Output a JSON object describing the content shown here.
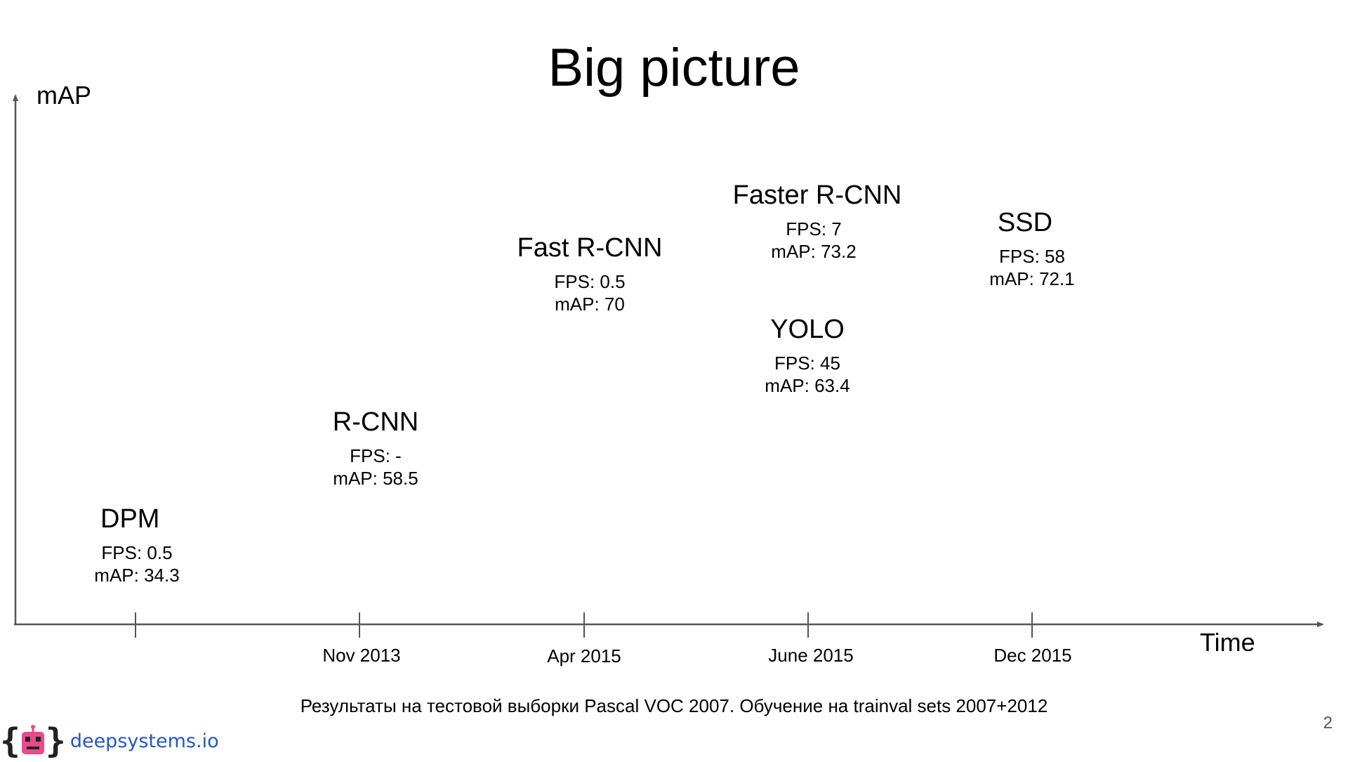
{
  "slide": {
    "title": "Big picture",
    "page_number": "2",
    "footnote": "Результаты на тестовой выборки Pascal VOC 2007. Обучение на trainval sets 2007+2012"
  },
  "axes": {
    "y_label": "mAP",
    "x_label": "Time"
  },
  "ticks": [
    {
      "label": ""
    },
    {
      "label": "Nov 2013"
    },
    {
      "label": "Apr 2015"
    },
    {
      "label": "June 2015"
    },
    {
      "label": "Dec 2015"
    }
  ],
  "methods": [
    {
      "name": "DPM",
      "fps": "FPS: 0.5",
      "map": "mAP: 34.3"
    },
    {
      "name": "R-CNN",
      "fps": "FPS: -",
      "map": "mAP: 58.5"
    },
    {
      "name": "Fast R-CNN",
      "fps": "FPS: 0.5",
      "map": "mAP: 70"
    },
    {
      "name": "Faster R-CNN",
      "fps": "FPS: 7",
      "map": "mAP: 73.2"
    },
    {
      "name": "YOLO",
      "fps": "FPS: 45",
      "map": "mAP: 63.4"
    },
    {
      "name": "SSD",
      "fps": "FPS: 58",
      "map": "mAP: 72.1"
    }
  ],
  "logo": {
    "text": "deepsystems.io",
    "icon": "robot-icon",
    "brace_color": "#222222",
    "robot_color": "#e84a8b",
    "text_color": "#2457c5"
  },
  "colors": {
    "axis": "#555555"
  }
}
